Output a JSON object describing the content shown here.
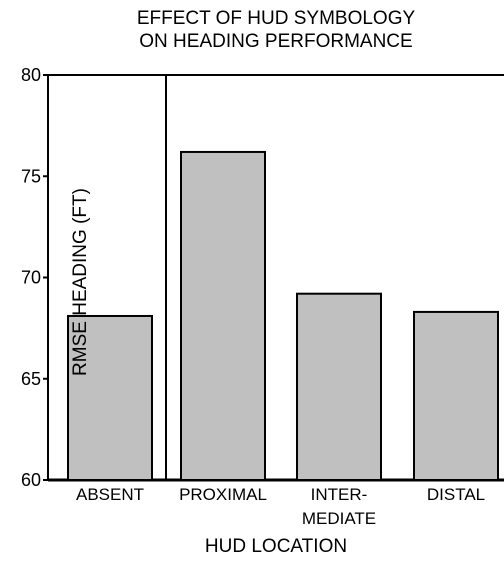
{
  "chart_data": {
    "type": "bar",
    "title_lines": [
      "EFFECT OF HUD SYMBOLOGY",
      "ON HEADING PERFORMANCE"
    ],
    "xlabel": "HUD LOCATION",
    "ylabel": "RMSE HEADING (FT)",
    "categories": [
      [
        "ABSENT"
      ],
      [
        "PROXIMAL"
      ],
      [
        "INTER-",
        "MEDIATE"
      ],
      [
        "DISTAL"
      ]
    ],
    "values": [
      68.1,
      76.2,
      69.2,
      68.3
    ],
    "ylim": [
      60,
      80
    ],
    "yticks": [
      "60",
      "65",
      "70",
      "75",
      "80"
    ],
    "grid": false,
    "bar_color": "#c0c0c0"
  }
}
